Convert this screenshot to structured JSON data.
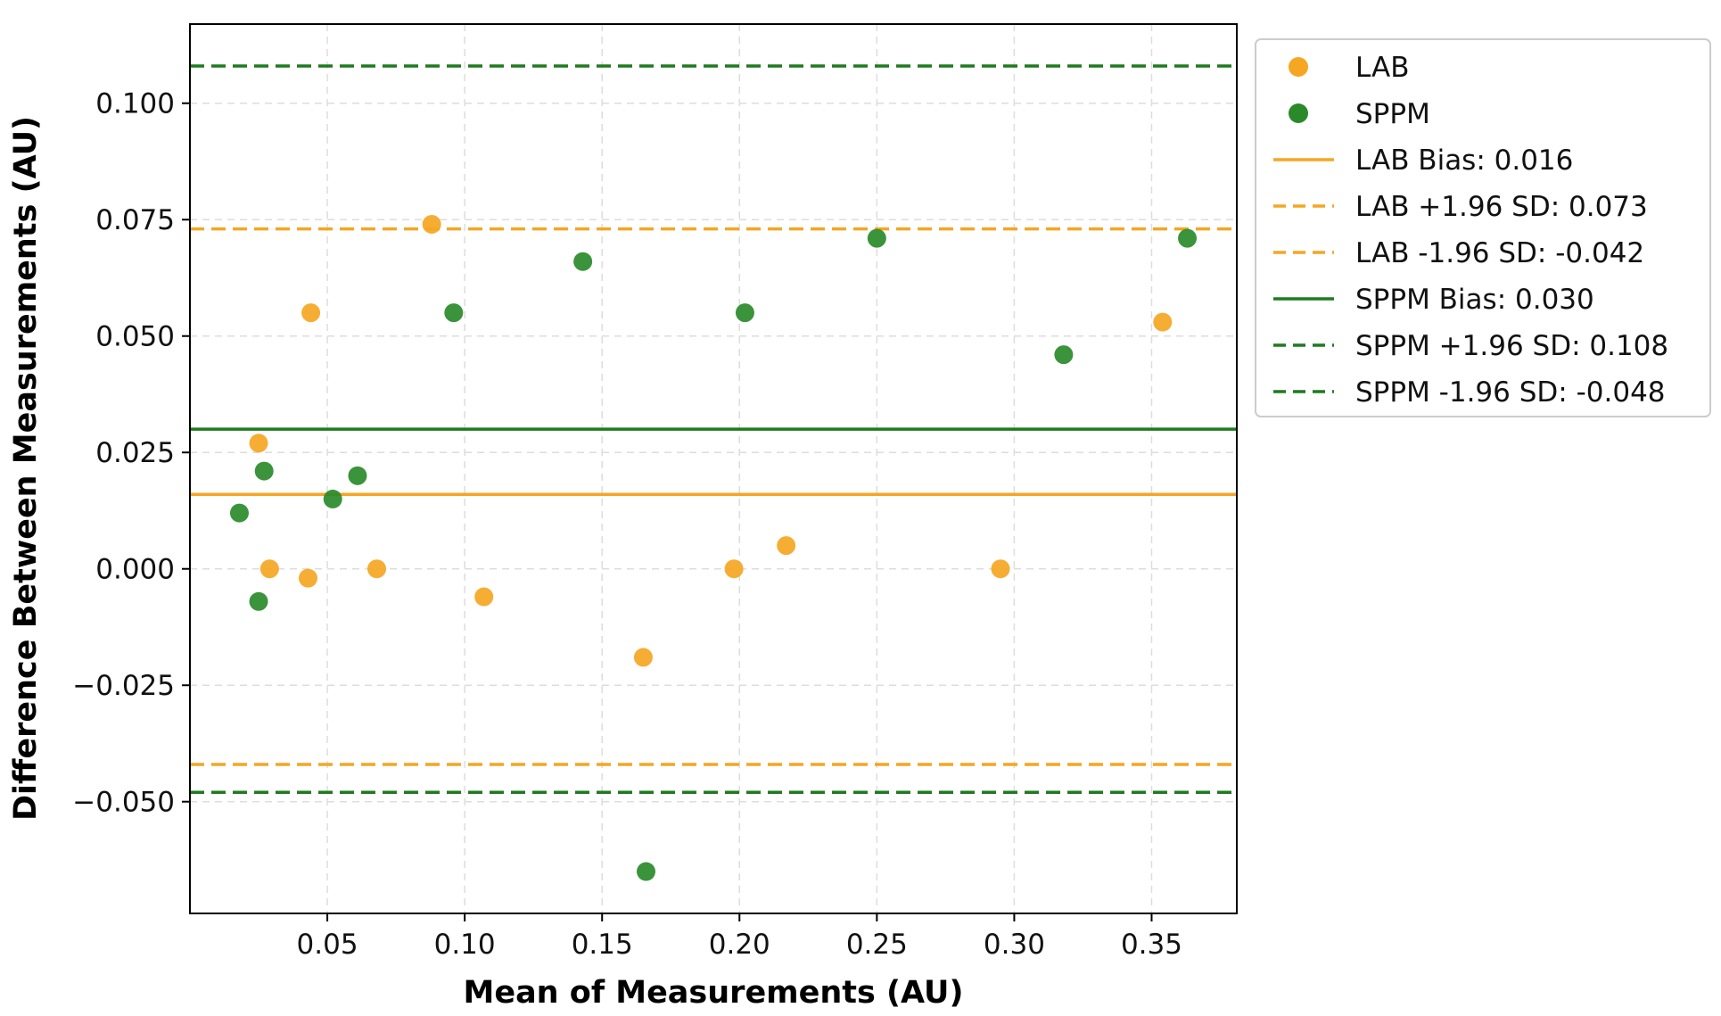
{
  "chart_data": {
    "type": "scatter",
    "title": "",
    "xlabel": "Mean of Measurements (AU)",
    "ylabel": "Difference Between Measurements (AU)",
    "xlim": [
      0.0,
      0.381
    ],
    "ylim": [
      -0.074,
      0.117
    ],
    "x_ticks": [
      0.05,
      0.1,
      0.15,
      0.2,
      0.25,
      0.3,
      0.35
    ],
    "x_tick_labels": [
      "0.05",
      "0.10",
      "0.15",
      "0.20",
      "0.25",
      "0.30",
      "0.35"
    ],
    "y_ticks": [
      -0.05,
      -0.025,
      0.0,
      0.025,
      0.05,
      0.075,
      0.1
    ],
    "y_tick_labels": [
      "−0.050",
      "−0.025",
      "0.000",
      "0.025",
      "0.050",
      "0.075",
      "0.100"
    ],
    "grid": true,
    "legend_position": "outside-right-top",
    "series": [
      {
        "name": "LAB",
        "color": "#f5a623",
        "points": [
          {
            "x": 0.025,
            "y": 0.027
          },
          {
            "x": 0.029,
            "y": 0.0
          },
          {
            "x": 0.043,
            "y": -0.002
          },
          {
            "x": 0.044,
            "y": 0.055
          },
          {
            "x": 0.068,
            "y": 0.0
          },
          {
            "x": 0.088,
            "y": 0.074
          },
          {
            "x": 0.107,
            "y": -0.006
          },
          {
            "x": 0.165,
            "y": -0.019
          },
          {
            "x": 0.198,
            "y": 0.0
          },
          {
            "x": 0.217,
            "y": 0.005
          },
          {
            "x": 0.295,
            "y": 0.0
          },
          {
            "x": 0.354,
            "y": 0.053
          }
        ]
      },
      {
        "name": "SPPM",
        "color": "#2a8a2a",
        "points": [
          {
            "x": 0.018,
            "y": 0.012
          },
          {
            "x": 0.025,
            "y": -0.007
          },
          {
            "x": 0.027,
            "y": 0.021
          },
          {
            "x": 0.052,
            "y": 0.015
          },
          {
            "x": 0.061,
            "y": 0.02
          },
          {
            "x": 0.096,
            "y": 0.055
          },
          {
            "x": 0.143,
            "y": 0.066
          },
          {
            "x": 0.166,
            "y": -0.065
          },
          {
            "x": 0.202,
            "y": 0.055
          },
          {
            "x": 0.25,
            "y": 0.071
          },
          {
            "x": 0.318,
            "y": 0.046
          },
          {
            "x": 0.363,
            "y": 0.071
          }
        ]
      }
    ],
    "reference_lines": [
      {
        "name": "LAB Bias: 0.016",
        "value": 0.016,
        "color": "#f5a623",
        "style": "solid"
      },
      {
        "name": "LAB +1.96 SD: 0.073",
        "value": 0.073,
        "color": "#f5a623",
        "style": "dashed"
      },
      {
        "name": "LAB -1.96 SD: -0.042",
        "value": -0.042,
        "color": "#f5a623",
        "style": "dashed"
      },
      {
        "name": "SPPM Bias: 0.030",
        "value": 0.03,
        "color": "#1f7a1f",
        "style": "solid"
      },
      {
        "name": "SPPM +1.96 SD: 0.108",
        "value": 0.108,
        "color": "#1f7a1f",
        "style": "dashed"
      },
      {
        "name": "SPPM -1.96 SD: -0.048",
        "value": -0.048,
        "color": "#1f7a1f",
        "style": "dashed"
      }
    ]
  }
}
